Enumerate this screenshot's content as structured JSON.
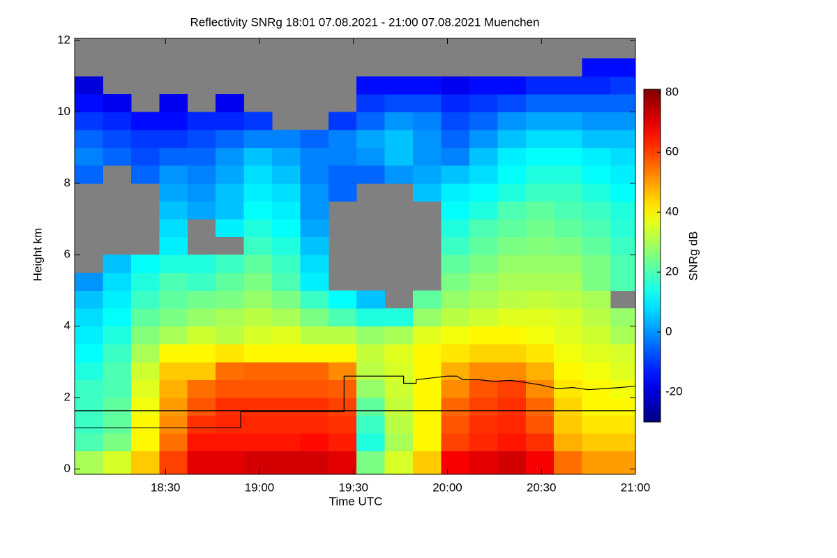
{
  "chart_data": {
    "type": "heatmap",
    "title": "Reflectivity SNRg   18:01 07.08.2021 - 21:00 07.08.2021 Muenchen",
    "xlabel": "Time UTC",
    "ylabel": "Height km",
    "clabel": "SNRg dB",
    "xlim": [
      "18:01",
      "21:00"
    ],
    "xticks": [
      "18:30",
      "19:00",
      "19:30",
      "20:00",
      "20:30",
      "21:00"
    ],
    "ylim": [
      -0.15,
      12.06
    ],
    "yticks": [
      0,
      2,
      4,
      6,
      8,
      10,
      12
    ],
    "clim": [
      -30,
      81
    ],
    "cticks": [
      -20,
      0,
      20,
      40,
      60,
      80
    ],
    "colormap": "jet",
    "missing_color": "#808080",
    "xbins": [
      "18:01",
      "18:10",
      "18:19",
      "18:28",
      "18:37",
      "18:46",
      "18:55",
      "19:04",
      "19:13",
      "19:22",
      "19:31",
      "19:40",
      "19:49",
      "19:58",
      "20:07",
      "20:16",
      "20:25",
      "20:34",
      "20:43",
      "20:52",
      "21:00"
    ],
    "ybins": [
      -0.15,
      0.5,
      1,
      1.5,
      2,
      2.5,
      3,
      3.5,
      4,
      4.5,
      5,
      5.5,
      6,
      6.5,
      7,
      7.5,
      8,
      8.5,
      9,
      9.5,
      10,
      10.5,
      11,
      11.5,
      12
    ],
    "z": [
      [
        30,
        35,
        45,
        60,
        70,
        70,
        72,
        72,
        72,
        70,
        25,
        35,
        45,
        68,
        70,
        72,
        68,
        55,
        50,
        50
      ],
      [
        20,
        25,
        40,
        55,
        65,
        65,
        65,
        65,
        66,
        64,
        15,
        30,
        40,
        60,
        63,
        65,
        62,
        48,
        45,
        45
      ],
      [
        18,
        22,
        40,
        52,
        62,
        63,
        63,
        63,
        63,
        62,
        18,
        32,
        40,
        58,
        62,
        63,
        58,
        45,
        42,
        42
      ],
      [
        18,
        22,
        38,
        50,
        58,
        62,
        62,
        62,
        62,
        60,
        22,
        33,
        40,
        56,
        60,
        62,
        56,
        44,
        40,
        40
      ],
      [
        18,
        20,
        36,
        48,
        55,
        58,
        58,
        58,
        58,
        57,
        28,
        34,
        40,
        52,
        58,
        60,
        52,
        42,
        40,
        38
      ],
      [
        15,
        20,
        34,
        45,
        45,
        55,
        56,
        56,
        56,
        52,
        32,
        35,
        40,
        48,
        52,
        52,
        48,
        40,
        38,
        36
      ],
      [
        12,
        18,
        30,
        40,
        40,
        42,
        40,
        40,
        40,
        40,
        33,
        36,
        40,
        42,
        44,
        44,
        42,
        38,
        36,
        35
      ],
      [
        10,
        15,
        26,
        30,
        34,
        32,
        35,
        36,
        32,
        32,
        28,
        30,
        36,
        38,
        40,
        40,
        38,
        36,
        34,
        30
      ],
      [
        8,
        12,
        22,
        25,
        28,
        30,
        32,
        30,
        25,
        20,
        15,
        15,
        28,
        32,
        34,
        36,
        36,
        35,
        32,
        28
      ],
      [
        5,
        10,
        18,
        22,
        24,
        25,
        28,
        25,
        18,
        12,
        5,
        null,
        22,
        28,
        30,
        32,
        33,
        32,
        30,
        null
      ],
      [
        0,
        8,
        15,
        20,
        18,
        22,
        25,
        20,
        10,
        null,
        null,
        null,
        null,
        25,
        28,
        30,
        30,
        30,
        25,
        20
      ],
      [
        null,
        5,
        12,
        15,
        15,
        18,
        22,
        18,
        8,
        null,
        null,
        null,
        null,
        22,
        25,
        28,
        28,
        28,
        25,
        20
      ],
      [
        null,
        null,
        null,
        10,
        null,
        null,
        18,
        15,
        5,
        null,
        null,
        null,
        null,
        18,
        22,
        25,
        26,
        25,
        22,
        18
      ],
      [
        null,
        null,
        null,
        8,
        null,
        10,
        15,
        12,
        2,
        null,
        null,
        null,
        null,
        15,
        20,
        22,
        24,
        22,
        20,
        16
      ],
      [
        null,
        null,
        null,
        5,
        2,
        5,
        12,
        10,
        0,
        null,
        null,
        null,
        null,
        12,
        15,
        20,
        22,
        20,
        18,
        15
      ],
      [
        null,
        null,
        null,
        2,
        0,
        5,
        10,
        8,
        0,
        -5,
        null,
        null,
        5,
        10,
        12,
        15,
        18,
        18,
        15,
        12
      ],
      [
        -5,
        null,
        -5,
        0,
        -2,
        2,
        8,
        5,
        -2,
        -5,
        -5,
        0,
        2,
        5,
        8,
        12,
        15,
        15,
        12,
        10
      ],
      [
        -2,
        -5,
        -8,
        -5,
        -5,
        0,
        5,
        2,
        -2,
        -2,
        0,
        5,
        0,
        -2,
        5,
        10,
        12,
        12,
        10,
        8
      ],
      [
        -5,
        -8,
        -10,
        -10,
        -8,
        -5,
        -2,
        -2,
        -5,
        -2,
        2,
        5,
        0,
        -5,
        0,
        5,
        8,
        8,
        5,
        5
      ],
      [
        -10,
        -12,
        -15,
        -15,
        -12,
        -12,
        -10,
        null,
        null,
        -10,
        -5,
        0,
        -2,
        -8,
        -5,
        0,
        2,
        2,
        0,
        0
      ],
      [
        -15,
        -18,
        null,
        -18,
        null,
        -18,
        null,
        null,
        null,
        null,
        -10,
        -8,
        -8,
        -12,
        -10,
        -8,
        -5,
        -5,
        -5,
        -5
      ],
      [
        -20,
        null,
        null,
        null,
        null,
        null,
        null,
        null,
        null,
        null,
        -15,
        -15,
        -15,
        -18,
        -15,
        -15,
        -12,
        -12,
        -12,
        -10
      ],
      [
        null,
        null,
        null,
        null,
        null,
        null,
        null,
        null,
        null,
        null,
        null,
        null,
        null,
        null,
        null,
        null,
        null,
        null,
        -15,
        -15
      ],
      [
        null,
        null,
        null,
        null,
        null,
        null,
        null,
        null,
        null,
        null,
        null,
        null,
        null,
        null,
        null,
        null,
        null,
        null,
        null,
        null
      ]
    ],
    "series": [
      {
        "color": "#000000",
        "x": [
          "18:01",
          "18:54",
          "18:54",
          "19:27",
          "19:27",
          "19:46",
          "19:46",
          "19:50",
          "19:50",
          "19:55",
          "20:00",
          "20:03",
          "20:05",
          "20:10",
          "20:15",
          "20:20",
          "20:25",
          "20:30",
          "20:35",
          "20:40",
          "20:45",
          "20:50",
          "20:55",
          "21:00"
        ],
        "values": [
          1.15,
          1.15,
          1.6,
          1.6,
          2.6,
          2.6,
          2.4,
          2.4,
          2.5,
          2.55,
          2.6,
          2.6,
          2.5,
          2.5,
          2.45,
          2.48,
          2.42,
          2.35,
          2.25,
          2.28,
          2.22,
          2.25,
          2.28,
          2.32
        ]
      },
      {
        "color": "#000000",
        "x": [
          "18:01",
          "21:00"
        ],
        "values": [
          1.63,
          1.63
        ]
      }
    ]
  }
}
